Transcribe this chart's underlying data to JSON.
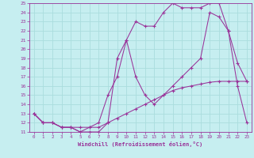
{
  "xlabel": "Windchill (Refroidissement éolien,°C)",
  "xlim": [
    -0.5,
    23.5
  ],
  "ylim": [
    11,
    25
  ],
  "xticks": [
    0,
    1,
    2,
    3,
    4,
    5,
    6,
    7,
    8,
    9,
    10,
    11,
    12,
    13,
    14,
    15,
    16,
    17,
    18,
    19,
    20,
    21,
    22,
    23
  ],
  "yticks": [
    11,
    12,
    13,
    14,
    15,
    16,
    17,
    18,
    19,
    20,
    21,
    22,
    23,
    24,
    25
  ],
  "bg_color": "#c6eef0",
  "grid_color": "#aadddd",
  "line_color": "#993399",
  "line1_x": [
    0,
    1,
    2,
    3,
    4,
    5,
    6,
    7,
    8,
    9,
    10,
    11,
    12,
    13,
    14,
    15,
    16,
    17,
    18,
    19,
    20,
    21,
    22,
    23
  ],
  "line1_y": [
    13,
    12,
    12,
    11.5,
    11.5,
    11,
    11,
    11,
    12,
    19,
    21,
    23,
    22.5,
    22.5,
    24,
    25,
    24.5,
    24.5,
    24.5,
    25,
    25,
    22,
    18.5,
    16.5
  ],
  "line2_x": [
    0,
    1,
    2,
    3,
    4,
    5,
    6,
    7,
    8,
    9,
    10,
    11,
    12,
    13,
    14,
    15,
    16,
    17,
    18,
    19,
    20,
    21,
    22,
    23
  ],
  "line2_y": [
    13,
    12,
    12,
    11.5,
    11.5,
    11,
    11.5,
    12,
    15,
    17,
    21,
    17,
    15,
    14,
    15,
    16,
    17,
    18,
    19,
    24,
    23.5,
    22,
    16,
    12
  ],
  "line3_x": [
    0,
    1,
    2,
    3,
    4,
    5,
    6,
    7,
    8,
    9,
    10,
    11,
    12,
    13,
    14,
    15,
    16,
    17,
    18,
    19,
    20,
    21,
    22,
    23
  ],
  "line3_y": [
    13,
    12,
    12,
    11.5,
    11.5,
    11.5,
    11.5,
    11.5,
    12,
    12.5,
    13,
    13.5,
    14,
    14.5,
    15,
    15.5,
    15.8,
    16,
    16.2,
    16.4,
    16.5,
    16.5,
    16.5,
    16.5
  ]
}
